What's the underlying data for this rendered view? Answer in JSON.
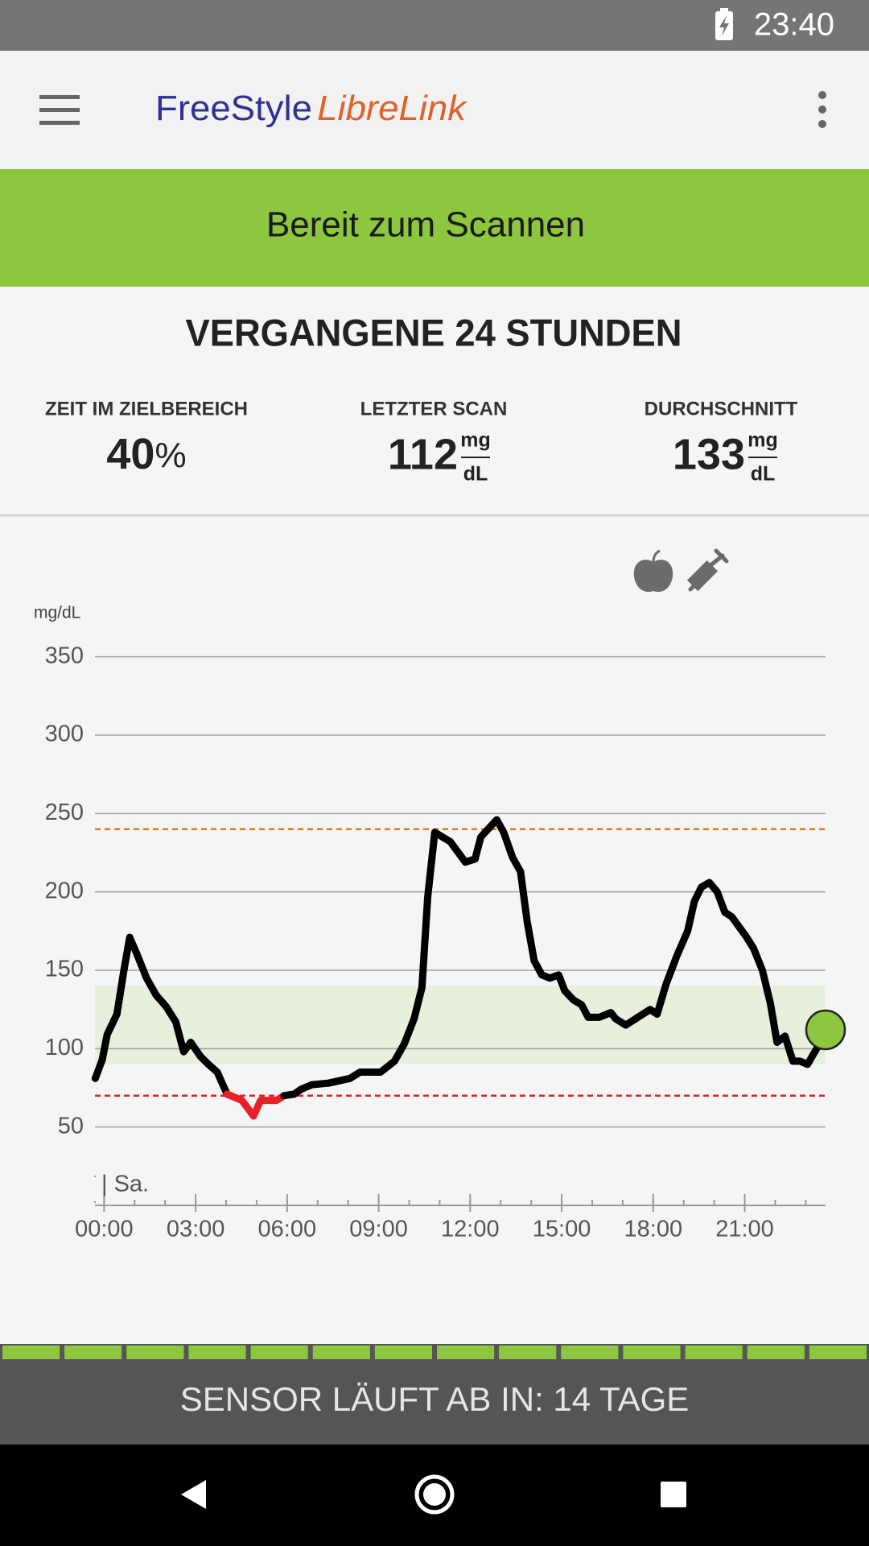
{
  "status_bar": {
    "time": "23:40"
  },
  "app_bar": {
    "logo": {
      "part1": "FreeStyle",
      "part2": "LibreLink"
    }
  },
  "banner": {
    "text": "Bereit zum Scannen"
  },
  "summary": {
    "title": "VERGANGENE 24 STUNDEN",
    "stats": [
      {
        "label": "ZEIT IM ZIELBEREICH",
        "value": "40",
        "unit": "%"
      },
      {
        "label": "LETZTER SCAN",
        "value": "112",
        "unit_top": "mg",
        "unit_bottom": "dL"
      },
      {
        "label": "DURCHSCHNITT",
        "value": "133",
        "unit_top": "mg",
        "unit_bottom": "dL"
      }
    ]
  },
  "chart_data": {
    "type": "line",
    "y_label": "mg/dL",
    "day_label": "| Sa.",
    "color": "#000000",
    "low_color": "#e8202a",
    "current_color": "#8dc63f",
    "target_range": [
      90,
      140
    ],
    "target_color": "#e6f0dc",
    "high_line": 240,
    "high_color": "#e07b1e",
    "low_line": 70,
    "low_line_color": "#e8202a",
    "xlim": [
      -0.3,
      23.65
    ],
    "ylim": [
      0,
      375
    ],
    "xticks": [
      {
        "value": 0,
        "label": "00:00"
      },
      {
        "value": 3,
        "label": "03:00"
      },
      {
        "value": 6,
        "label": "06:00"
      },
      {
        "value": 9,
        "label": "09:00"
      },
      {
        "value": 12,
        "label": "12:00"
      },
      {
        "value": 15,
        "label": "15:00"
      },
      {
        "value": 18,
        "label": "18:00"
      },
      {
        "value": 21,
        "label": "21:00"
      }
    ],
    "yticks": [
      50,
      100,
      150,
      200,
      250,
      300,
      350
    ],
    "grid": true,
    "x": [
      -0.29,
      -0.06,
      0.1,
      0.42,
      0.65,
      0.84,
      1.06,
      1.39,
      1.71,
      2.03,
      2.35,
      2.61,
      2.84,
      3.16,
      3.42,
      3.71,
      4.03,
      4.52,
      4.9,
      5.13,
      5.65,
      5.9,
      6.23,
      6.45,
      6.81,
      7.35,
      8.06,
      8.39,
      9.06,
      9.52,
      9.84,
      10.16,
      10.42,
      10.61,
      10.84,
      11.35,
      11.84,
      12.16,
      12.35,
      12.87,
      13.1,
      13.39,
      13.65,
      13.87,
      14.1,
      14.35,
      14.61,
      14.9,
      15.1,
      15.39,
      15.65,
      15.87,
      16.23,
      16.61,
      16.77,
      17.1,
      17.42,
      17.9,
      18.13,
      18.42,
      18.77,
      19.13,
      19.35,
      19.58,
      19.84,
      20.1,
      20.35,
      20.58,
      21.03,
      21.29,
      21.58,
      21.84,
      22.06,
      22.32,
      22.58,
      22.81,
      23.06,
      23.39,
      23.65
    ],
    "values": [
      81,
      93,
      109,
      122,
      150,
      171,
      161,
      145,
      134,
      127,
      117,
      98,
      104,
      95,
      90,
      85,
      71,
      67,
      57,
      67,
      67,
      70,
      71,
      74,
      77,
      78,
      81,
      85,
      85,
      92,
      103,
      119,
      139,
      197,
      238,
      232,
      219,
      221,
      235,
      246,
      238,
      222,
      213,
      181,
      156,
      147,
      145,
      147,
      137,
      131,
      128,
      120,
      120,
      123,
      119,
      115,
      119,
      125,
      122,
      141,
      159,
      175,
      194,
      203,
      206,
      200,
      187,
      184,
      172,
      164,
      150,
      129,
      104,
      108,
      92,
      92,
      90,
      101,
      112
    ]
  },
  "sensor": {
    "text": "SENSOR LÄUFT AB IN: 14 TAGE"
  }
}
